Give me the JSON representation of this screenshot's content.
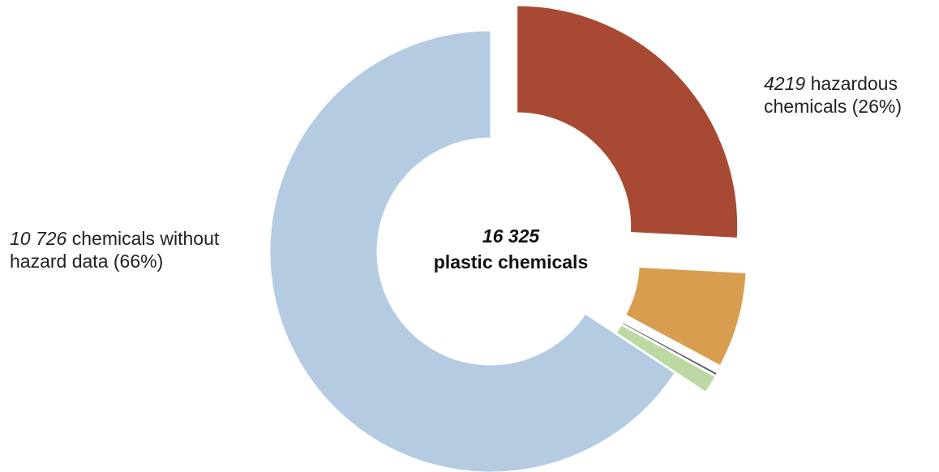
{
  "chart_data": {
    "type": "pie",
    "subtype": "donut",
    "center_label": {
      "count": "16 325",
      "text": "plastic chemicals"
    },
    "total": 16325,
    "slices": [
      {
        "value": 4219,
        "color": "#a84a33",
        "count_text": "4219",
        "label_text": "hazardous",
        "label_line2": "chemicals (26%)",
        "exploded": true
      },
      {
        "value": 1140,
        "color": "#d99d50",
        "exploded": true
      },
      {
        "value": 30,
        "color": "#5b6170",
        "exploded": true
      },
      {
        "value": 210,
        "color": "#bcd9a3",
        "exploded": true
      },
      {
        "value": 10726,
        "color": "#b4cbe2",
        "count_text": "10 726",
        "label_text": "chemicals without",
        "label_line2": "hazard data (66%)",
        "exploded": false
      }
    ]
  }
}
